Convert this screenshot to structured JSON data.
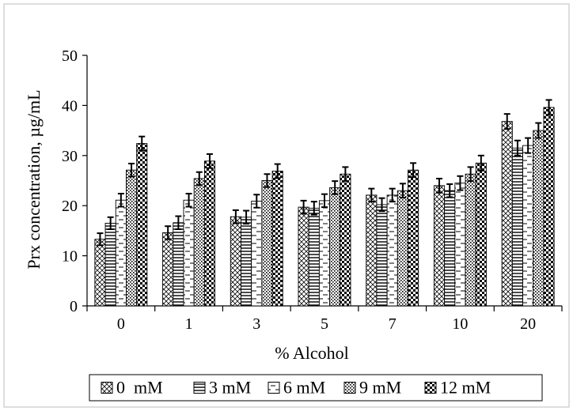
{
  "chart_data": {
    "type": "bar",
    "title": "",
    "xlabel": "% Alcohol",
    "ylabel": "Prx concentration, µg/mL",
    "ylim": [
      0,
      50
    ],
    "yticks": [
      "0",
      "10",
      "20",
      "30",
      "40",
      "50"
    ],
    "categories": [
      "0",
      "1",
      "3",
      "5",
      "7",
      "10",
      "20"
    ],
    "grid": false,
    "legend_position": "bottom",
    "series": [
      {
        "name": "0  mM",
        "pattern": "diamond-check",
        "values": [
          13.3,
          14.6,
          17.8,
          19.7,
          22.1,
          24.0,
          36.8
        ],
        "errors": [
          1.2,
          1.3,
          1.3,
          1.3,
          1.3,
          1.4,
          1.5
        ]
      },
      {
        "name": "3 mM",
        "pattern": "horizontal-lines",
        "values": [
          16.5,
          16.6,
          17.7,
          19.5,
          20.2,
          23.0,
          31.5
        ],
        "errors": [
          1.2,
          1.3,
          1.3,
          1.3,
          1.3,
          1.3,
          1.5
        ]
      },
      {
        "name": "6 mM",
        "pattern": "dashed-horizontal",
        "values": [
          21.1,
          21.1,
          20.9,
          21.0,
          22.1,
          24.5,
          32.0
        ],
        "errors": [
          1.3,
          1.3,
          1.3,
          1.3,
          1.3,
          1.4,
          1.5
        ]
      },
      {
        "name": "9 mM",
        "pattern": "dotted-grid",
        "values": [
          27.1,
          25.4,
          25.0,
          23.6,
          23.0,
          26.3,
          35.0
        ],
        "errors": [
          1.3,
          1.3,
          1.3,
          1.3,
          1.4,
          1.4,
          1.5
        ]
      },
      {
        "name": "12 mM",
        "pattern": "dense-check",
        "values": [
          32.4,
          28.9,
          26.9,
          26.3,
          27.1,
          28.5,
          39.6
        ],
        "errors": [
          1.4,
          1.4,
          1.4,
          1.4,
          1.4,
          1.5,
          1.5
        ]
      }
    ]
  }
}
